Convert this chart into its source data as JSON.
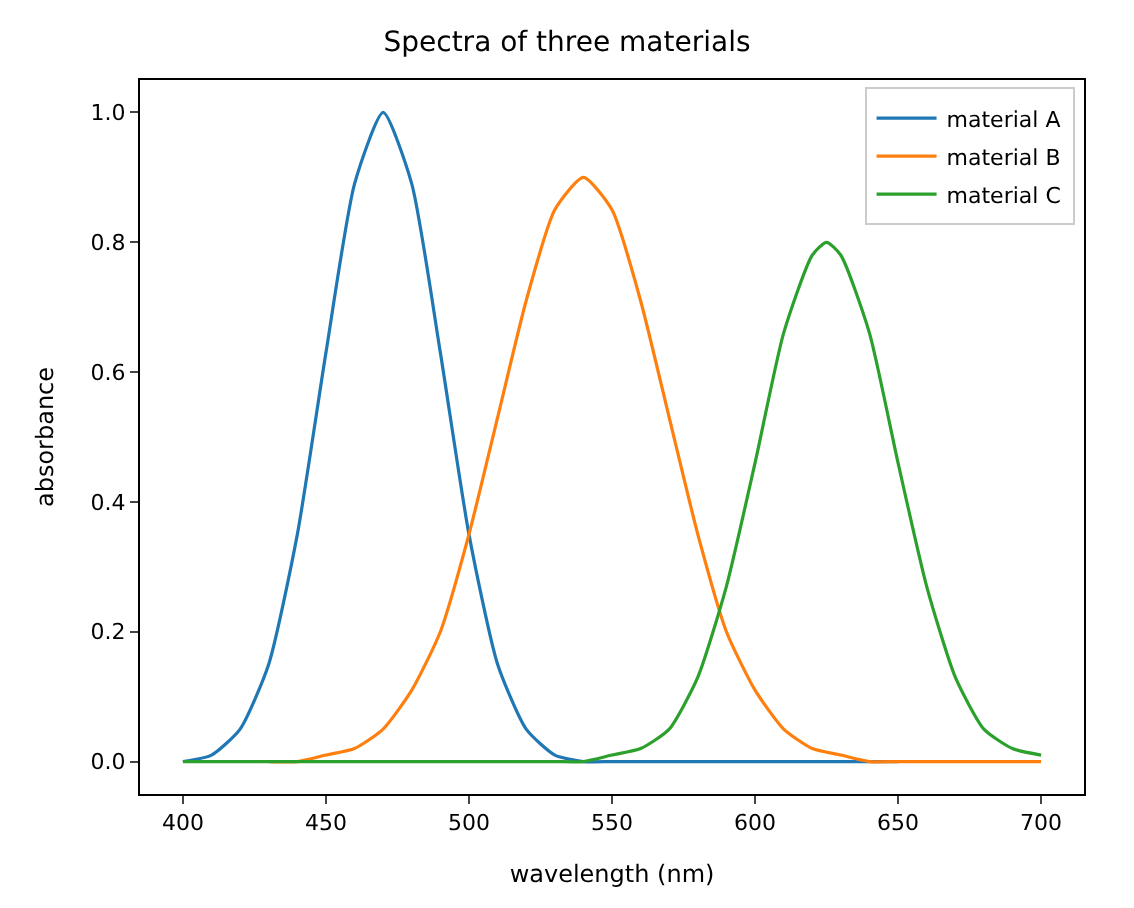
{
  "chart_data": {
    "type": "line",
    "title": "Spectra of three materials",
    "xlabel": "wavelength (nm)",
    "ylabel": "absorbance",
    "xlim": [
      385,
      715
    ],
    "ylim": [
      -0.05,
      1.05
    ],
    "xticks": [
      400,
      450,
      500,
      550,
      600,
      650,
      700
    ],
    "yticks": [
      {
        "value": 0,
        "label": "0.0"
      },
      {
        "value": 0.2,
        "label": "0.2"
      },
      {
        "value": 0.4,
        "label": "0.4"
      },
      {
        "value": 0.6,
        "label": "0.6"
      },
      {
        "value": 0.8,
        "label": "0.8"
      },
      {
        "value": 1,
        "label": "1.0"
      }
    ],
    "legend": "top right",
    "marker": "none",
    "line_style": "solid",
    "series": [
      {
        "name": "material A",
        "color": "#1f77b4",
        "x": [
          400,
          410,
          420,
          430,
          440,
          450,
          460,
          470,
          480,
          490,
          500,
          510,
          520,
          530,
          540,
          550,
          560,
          570,
          580,
          590,
          600,
          610,
          620,
          630,
          640,
          650
        ],
        "values": [
          0.0,
          0.01,
          0.05,
          0.15,
          0.35,
          0.63,
          0.89,
          1.0,
          0.89,
          0.63,
          0.35,
          0.15,
          0.05,
          0.01,
          0.0,
          0.0,
          0.0,
          0.0,
          0.0,
          0.0,
          0.0,
          0.0,
          0.0,
          0.0,
          0.0,
          0.0
        ]
      },
      {
        "name": "material B",
        "color": "#ff7f0e",
        "x": [
          430,
          440,
          450,
          460,
          470,
          480,
          490,
          500,
          510,
          520,
          530,
          540,
          550,
          560,
          570,
          580,
          590,
          600,
          610,
          620,
          630,
          640,
          650,
          660,
          670,
          680,
          690,
          700
        ],
        "values": [
          0.0,
          0.0,
          0.01,
          0.02,
          0.05,
          0.11,
          0.2,
          0.35,
          0.53,
          0.71,
          0.85,
          0.9,
          0.85,
          0.71,
          0.53,
          0.35,
          0.2,
          0.11,
          0.05,
          0.02,
          0.01,
          0.0,
          0.0,
          0.0,
          0.0,
          0.0,
          0.0,
          0.0
        ]
      },
      {
        "name": "material C",
        "color": "#2ca02c",
        "x": [
          400,
          410,
          420,
          430,
          440,
          450,
          460,
          470,
          480,
          490,
          500,
          510,
          520,
          530,
          540,
          550,
          560,
          570,
          580,
          590,
          600,
          610,
          620,
          625,
          630,
          640,
          650,
          660,
          670,
          680,
          690,
          700
        ],
        "values": [
          0.0,
          0.0,
          0.0,
          0.0,
          0.0,
          0.0,
          0.0,
          0.0,
          0.0,
          0.0,
          0.0,
          0.0,
          0.0,
          0.0,
          0.0,
          0.01,
          0.02,
          0.05,
          0.13,
          0.27,
          0.46,
          0.66,
          0.78,
          0.8,
          0.78,
          0.66,
          0.46,
          0.27,
          0.13,
          0.05,
          0.02,
          0.01
        ]
      }
    ]
  }
}
